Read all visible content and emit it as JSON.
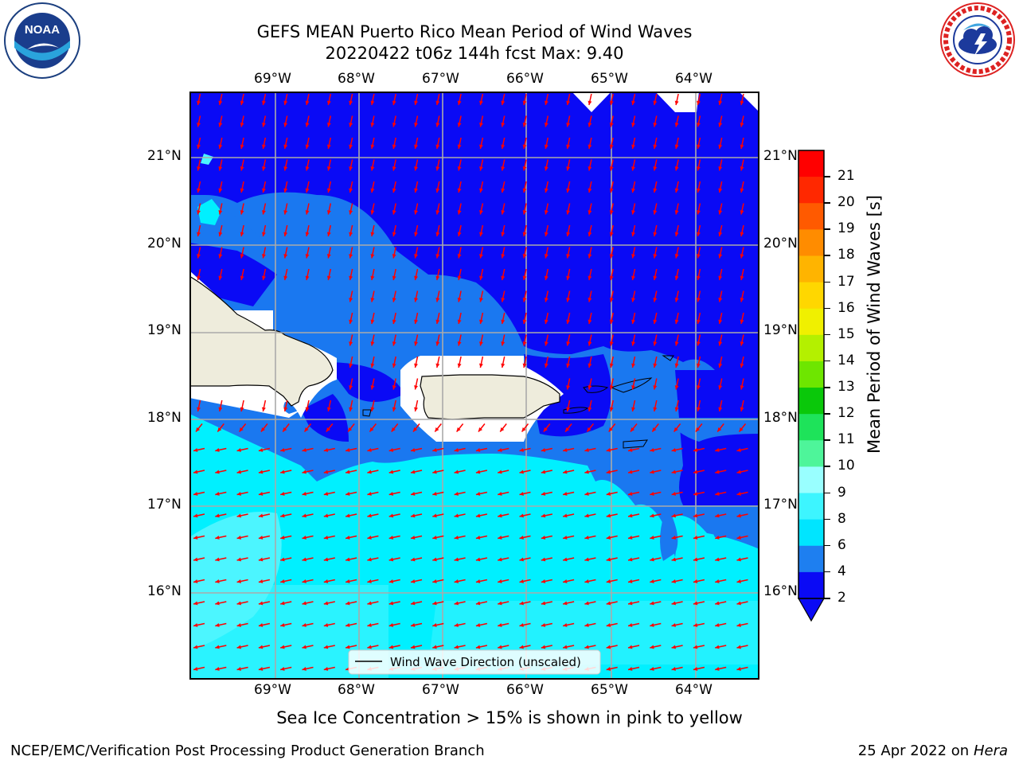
{
  "header": {
    "title_line1": "GEFS MEAN Puerto Rico Mean Period of Wind Waves",
    "title_line2": "20220422 t06z 144h fcst   Max: 9.40"
  },
  "logos": {
    "left": {
      "name": "noaa-logo",
      "text": "NOAA"
    },
    "right": {
      "name": "nws-logo"
    }
  },
  "map": {
    "lon_labels": [
      "69°W",
      "68°W",
      "67°W",
      "66°W",
      "65°W",
      "64°W"
    ],
    "lat_labels": [
      "21°N",
      "20°N",
      "19°N",
      "18°N",
      "17°N",
      "16°N"
    ],
    "legend_label": "Wind Wave Direction (unscaled)",
    "arrow_color": "#ff0000"
  },
  "colorbar": {
    "label": "Mean Period of Wind Waves [s]",
    "ticks": [
      "2",
      "4",
      "6",
      "8",
      "9",
      "10",
      "11",
      "12",
      "13",
      "14",
      "15",
      "16",
      "17",
      "18",
      "19",
      "20",
      "21"
    ],
    "colors": [
      "#0a0af5",
      "#1e7ff0",
      "#00e5ff",
      "#3df5ff",
      "#99ffff",
      "#4ef59a",
      "#1ee35a",
      "#0ac80a",
      "#6ee600",
      "#b4f000",
      "#f0f000",
      "#ffd700",
      "#ffb400",
      "#ff8c00",
      "#ff5a00",
      "#ff2800",
      "#ff0000"
    ]
  },
  "footer": {
    "left": "NCEP/EMC/Verification Post Processing Product Generation Branch",
    "right_date": "25 Apr 2022 on ",
    "right_host": "Hera"
  },
  "subtitle": "Sea Ice Concentration > 15% is shown in pink to yellow"
}
